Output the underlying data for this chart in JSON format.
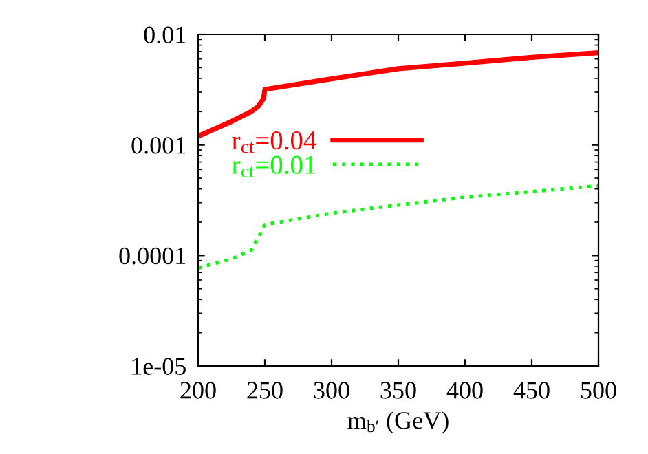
{
  "chart_data": {
    "type": "line",
    "xlabel": "m$_{b′}$ (GeV)",
    "log": "y",
    "xlim": [
      200,
      500
    ],
    "ylim": [
      1e-05,
      0.01
    ],
    "xticks": [
      200,
      250,
      300,
      350,
      400,
      450,
      500
    ],
    "yticks": [
      {
        "value": 1e-05,
        "label": "1e-05"
      },
      {
        "value": 0.0001,
        "label": "0.0001"
      },
      {
        "value": 0.001,
        "label": "0.001"
      },
      {
        "value": 0.01,
        "label": "0.01"
      }
    ],
    "grid": false,
    "legend": "left",
    "series": [
      {
        "name": "r$_{ct}$=0.04",
        "color": "#ff0000",
        "line_style": "solid",
        "x": [
          200,
          225,
          240,
          245,
          249,
          250,
          300,
          350,
          400,
          450,
          500
        ],
        "values": [
          0.0012,
          0.00163,
          0.00201,
          0.00223,
          0.00262,
          0.00318,
          0.00396,
          0.00489,
          0.00548,
          0.0062,
          0.00683
        ]
      },
      {
        "name": "r$_{ct}$=0.01",
        "color": "#00ff00",
        "line_style": "dotted",
        "x": [
          200,
          225,
          240,
          250,
          300,
          350,
          400,
          450,
          500
        ],
        "values": [
          7.7e-05,
          9.3e-05,
          0.000112,
          0.00019,
          0.000241,
          0.000286,
          0.000336,
          0.000378,
          0.000427
        ]
      }
    ]
  }
}
